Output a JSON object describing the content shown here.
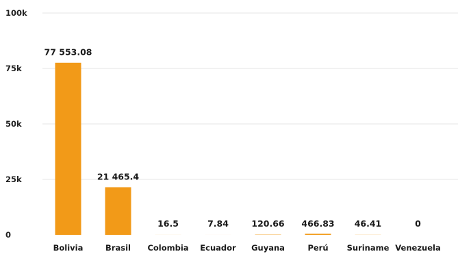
{
  "chart_data": {
    "type": "bar",
    "categories": [
      "Bolivia",
      "Brasil",
      "Colombia",
      "Ecuador",
      "Guyana",
      "Perú",
      "Suriname",
      "Venezuela"
    ],
    "values": [
      77553.08,
      21465.4,
      16.5,
      7.84,
      120.66,
      466.83,
      46.41,
      0
    ],
    "data_labels": [
      "77 553.08",
      "21 465.4",
      "16.5",
      "7.84",
      "120.66",
      "466.83",
      "46.41",
      "0"
    ],
    "ylim": [
      0,
      100000
    ],
    "yticks": [
      0,
      25000,
      50000,
      75000,
      100000
    ],
    "ytick_labels": [
      "0",
      "25k",
      "50k",
      "75k",
      "100k"
    ],
    "grid": true,
    "bar_color": "#f29a18",
    "title": "",
    "xlabel": "",
    "ylabel": ""
  }
}
